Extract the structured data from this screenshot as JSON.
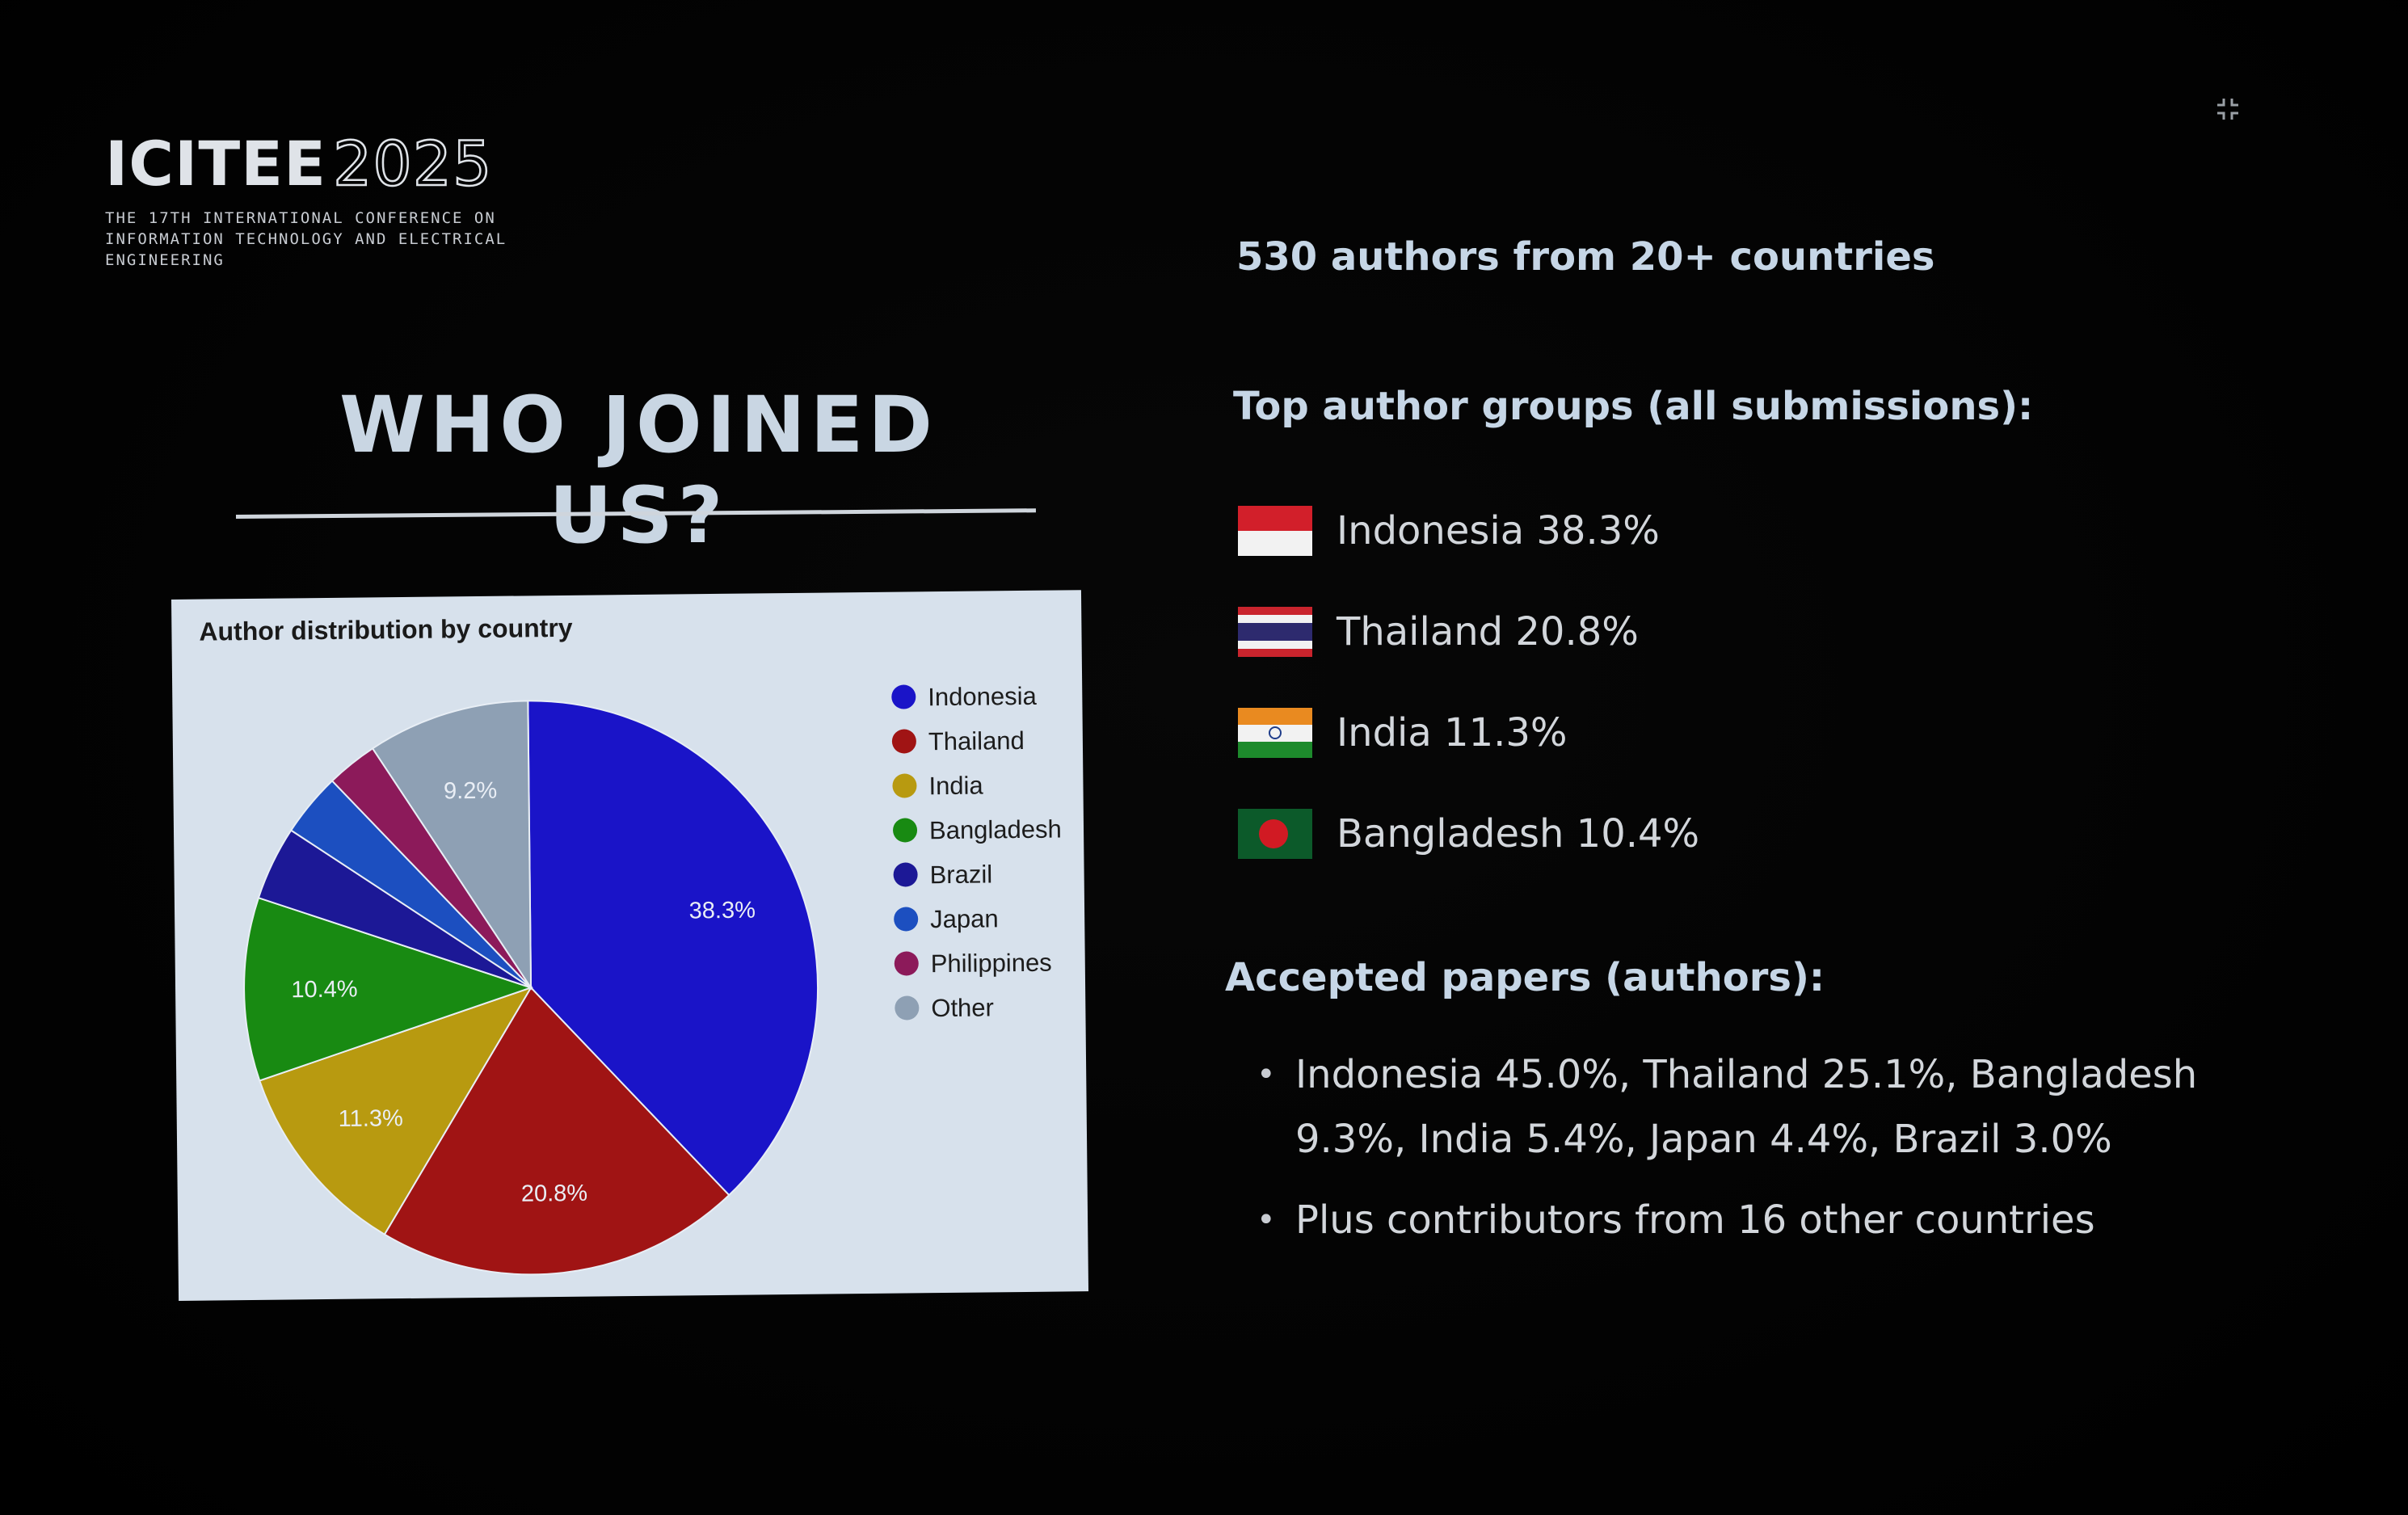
{
  "logo": {
    "word_bold": "ICITEE",
    "word_outline": "2025",
    "subtitle": "THE 17TH INTERNATIONAL CONFERENCE ON INFORMATION TECHNOLOGY AND ELECTRICAL ENGINEERING"
  },
  "slide": {
    "title": "WHO JOINED US?",
    "headline": "530 authors from 20+ countries",
    "top_groups_heading": "Top author groups (all submissions):",
    "top_groups": [
      {
        "label": "Indonesia 38.3%",
        "flag_icon": "indonesia-flag-icon"
      },
      {
        "label": "Thailand 20.8%",
        "flag_icon": "thailand-flag-icon"
      },
      {
        "label": "India 11.3%",
        "flag_icon": "india-flag-icon"
      },
      {
        "label": "Bangladesh 10.4%",
        "flag_icon": "bangladesh-flag-icon"
      }
    ],
    "accepted_heading": "Accepted papers (authors):",
    "accepted_bullets": [
      "Indonesia 45.0%, Thailand 25.1%, Bangladesh 9.3%, India 5.4%, Japan 4.4%, Brazil 3.0%",
      "Plus contributors from 16 other countries"
    ]
  },
  "chart_data": {
    "type": "pie",
    "title": "Author distribution by country",
    "legend_position": "right",
    "slices": [
      {
        "label": "Indonesia",
        "value": 38.3,
        "color": "#1a14c8",
        "data_label": "38.3%"
      },
      {
        "label": "Thailand",
        "value": 20.8,
        "color": "#a01414",
        "data_label": "20.8%"
      },
      {
        "label": "India",
        "value": 11.3,
        "color": "#b89a10",
        "data_label": "11.3%"
      },
      {
        "label": "Bangladesh",
        "value": 10.4,
        "color": "#188a12",
        "data_label": "10.4%"
      },
      {
        "label": "Brazil",
        "value": 4.2,
        "color": "#1c1896",
        "data_label": ""
      },
      {
        "label": "Japan",
        "value": 3.6,
        "color": "#1c4fc0",
        "data_label": ""
      },
      {
        "label": "Philippines",
        "value": 2.9,
        "color": "#8c1a5a",
        "data_label": ""
      },
      {
        "label": "Other",
        "value": 9.2,
        "color": "#8ea0b4",
        "data_label": "9.2%"
      }
    ],
    "legend_order": [
      "Indonesia",
      "Thailand",
      "India",
      "Bangladesh",
      "Brazil",
      "Japan",
      "Philippines",
      "Other"
    ]
  }
}
